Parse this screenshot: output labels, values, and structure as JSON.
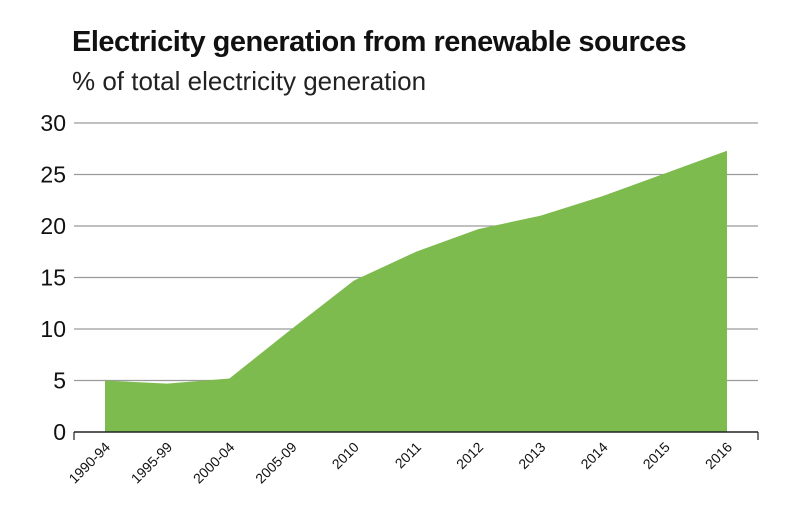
{
  "chart_data": {
    "type": "area",
    "title": "Electricity generation from renewable sources",
    "subtitle": "% of total electricity generation",
    "xlabel": "",
    "ylabel": "",
    "categories": [
      "1990-94",
      "1995-99",
      "2000-04",
      "2005-09",
      "2010",
      "2011",
      "2012",
      "2013",
      "2014",
      "2015",
      "2016"
    ],
    "values": [
      5.0,
      4.7,
      5.2,
      10.0,
      14.7,
      17.5,
      19.7,
      21.0,
      22.9,
      25.1,
      27.3
    ],
    "ylim": [
      0,
      30
    ],
    "yticks": [
      0,
      5,
      10,
      15,
      20,
      25,
      30
    ],
    "grid": true,
    "legend": "none",
    "fill_color": "#7dbb4f",
    "grid_color": "#9a9a9a"
  }
}
